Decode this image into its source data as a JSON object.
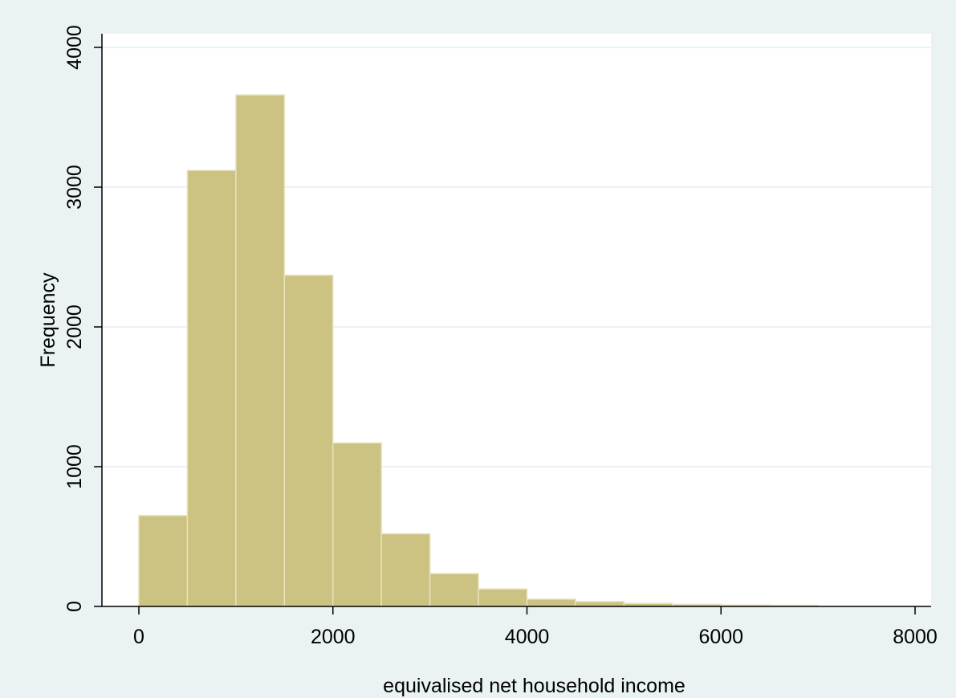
{
  "chart_data": {
    "type": "bar",
    "title": "",
    "xlabel": "equivalised net household income",
    "ylabel": "Frequency",
    "xlim": [
      0,
      8000
    ],
    "ylim": [
      0,
      4000
    ],
    "x_ticks": [
      0,
      2000,
      4000,
      6000,
      8000
    ],
    "y_ticks": [
      0,
      1000,
      2000,
      3000,
      4000
    ],
    "grid": "horizontal",
    "bin_width": 500,
    "bins": [
      {
        "x0": 0,
        "x1": 500,
        "value": 650
      },
      {
        "x0": 500,
        "x1": 1000,
        "value": 3120
      },
      {
        "x0": 1000,
        "x1": 1500,
        "value": 3660
      },
      {
        "x0": 1500,
        "x1": 2000,
        "value": 2370
      },
      {
        "x0": 2000,
        "x1": 2500,
        "value": 1170
      },
      {
        "x0": 2500,
        "x1": 3000,
        "value": 520
      },
      {
        "x0": 3000,
        "x1": 3500,
        "value": 235
      },
      {
        "x0": 3500,
        "x1": 4000,
        "value": 125
      },
      {
        "x0": 4000,
        "x1": 4500,
        "value": 52
      },
      {
        "x0": 4500,
        "x1": 5000,
        "value": 35
      },
      {
        "x0": 5000,
        "x1": 5500,
        "value": 22
      },
      {
        "x0": 5500,
        "x1": 6000,
        "value": 15
      },
      {
        "x0": 6000,
        "x1": 6500,
        "value": 10
      },
      {
        "x0": 6500,
        "x1": 7000,
        "value": 8
      }
    ],
    "colors": {
      "bar_fill": "#ccc281",
      "bar_stroke": "#e8e2be",
      "plot_background": "#ffffff",
      "outer_background": "#eaf2f3",
      "grid": "#eaf2f3",
      "axis": "#000000"
    }
  }
}
